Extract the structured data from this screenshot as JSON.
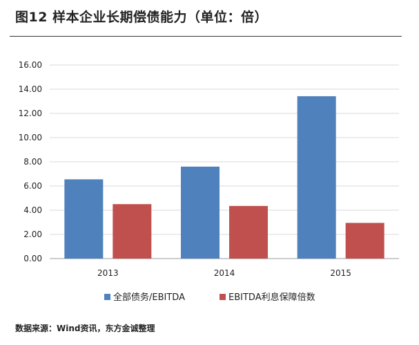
{
  "header": {
    "title": "图12  样本企业长期偿债能力（单位：倍）"
  },
  "footer": {
    "source": "数据来源：Wind资讯，东方金诚整理"
  },
  "chart_data": {
    "type": "bar",
    "categories": [
      "2013",
      "2014",
      "2015"
    ],
    "series": [
      {
        "name": "全部债务/EBITDA",
        "values": [
          6.55,
          7.6,
          13.42
        ],
        "color": "#4F81BD"
      },
      {
        "name": "EBITDA利息保障倍数",
        "values": [
          4.5,
          4.35,
          2.95
        ],
        "color": "#C0504D"
      }
    ],
    "ylim": [
      0,
      16
    ],
    "yticks": [
      "0.00",
      "2.00",
      "4.00",
      "6.00",
      "8.00",
      "10.00",
      "12.00",
      "14.00",
      "16.00"
    ],
    "grid": true,
    "legend_position": "bottom",
    "title": "",
    "xlabel": "",
    "ylabel": ""
  }
}
